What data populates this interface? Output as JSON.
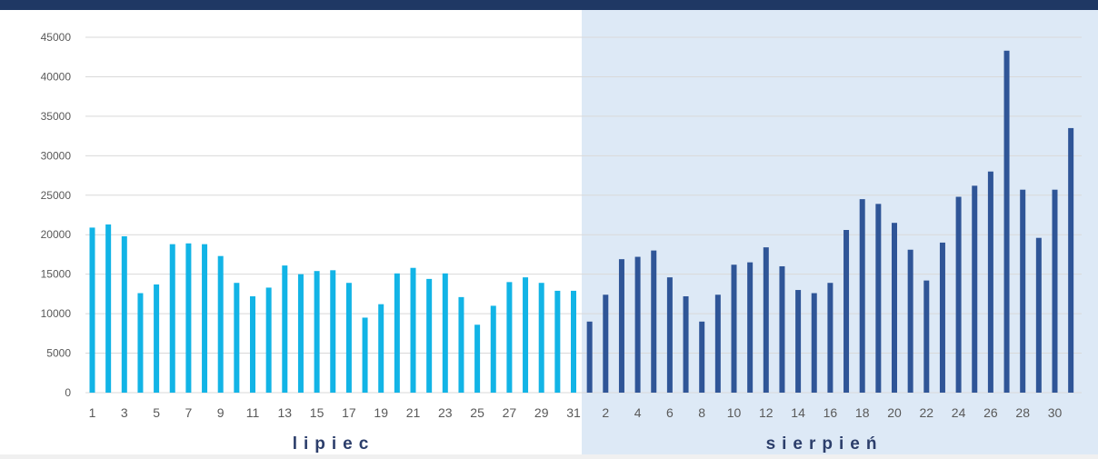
{
  "colors": {
    "header_bar": "#1f3864",
    "july_bar": "#12b4e6",
    "august_bar": "#2f5597",
    "august_background": "#dde9f6",
    "grid": "#d9d9d9",
    "tick_text": "#595959",
    "month_label": "#2c3e6b"
  },
  "chart_data": {
    "type": "bar",
    "ylim": [
      0,
      45000
    ],
    "yticks": [
      0,
      5000,
      10000,
      15000,
      20000,
      25000,
      30000,
      35000,
      40000,
      45000
    ],
    "grid": true,
    "months": [
      {
        "label": "lipiec",
        "days": [
          1,
          2,
          3,
          4,
          5,
          6,
          7,
          8,
          9,
          10,
          11,
          12,
          13,
          14,
          15,
          16,
          17,
          18,
          19,
          20,
          21,
          22,
          23,
          24,
          25,
          26,
          27,
          28,
          29,
          30,
          31
        ],
        "tick_labels": [
          "1",
          "3",
          "5",
          "7",
          "9",
          "11",
          "13",
          "15",
          "17",
          "19",
          "21",
          "23",
          "25",
          "27",
          "29",
          "31"
        ],
        "values": [
          20900,
          21300,
          19800,
          12600,
          13700,
          18800,
          18900,
          18800,
          17300,
          13900,
          12200,
          13300,
          16100,
          15000,
          15400,
          15500,
          13900,
          9500,
          11200,
          15100,
          15800,
          14400,
          15100,
          12100,
          8600,
          11000,
          14000,
          14600,
          13900,
          12900,
          12900
        ]
      },
      {
        "label": "sierpień",
        "days": [
          1,
          2,
          3,
          4,
          5,
          6,
          7,
          8,
          9,
          10,
          11,
          12,
          13,
          14,
          15,
          16,
          17,
          18,
          19,
          20,
          21,
          22,
          23,
          24,
          25,
          26,
          27,
          28,
          29,
          30,
          31
        ],
        "tick_labels": [
          "2",
          "4",
          "6",
          "8",
          "10",
          "12",
          "14",
          "16",
          "18",
          "20",
          "22",
          "24",
          "26",
          "28",
          "30"
        ],
        "values": [
          9000,
          12400,
          16900,
          17200,
          18000,
          14600,
          12200,
          9000,
          12400,
          16200,
          16500,
          18400,
          16000,
          13000,
          12600,
          13900,
          20600,
          24500,
          23900,
          21500,
          18100,
          14200,
          19000,
          24800,
          26200,
          28000,
          43300,
          25700,
          19600,
          25700,
          33500
        ]
      }
    ]
  }
}
